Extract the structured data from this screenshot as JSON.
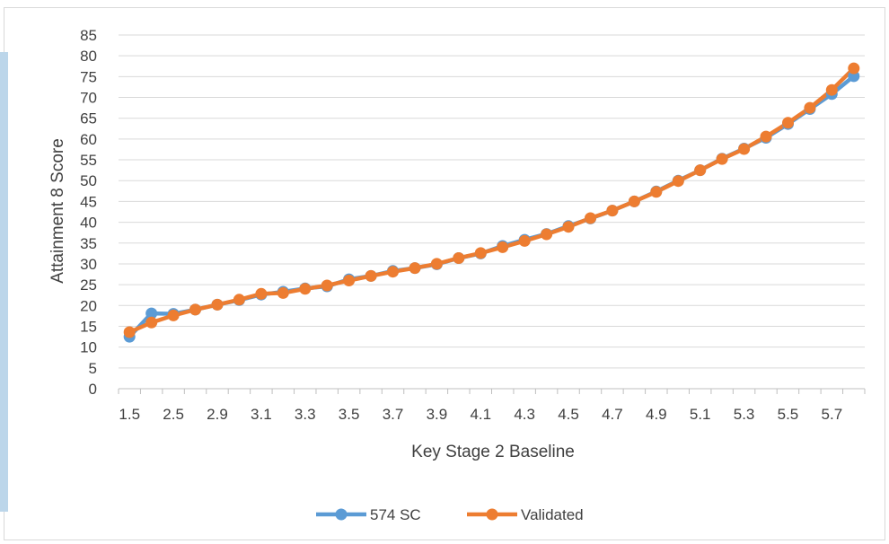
{
  "chart_data": {
    "type": "line",
    "title": "",
    "xlabel": "Key Stage 2 Baseline",
    "ylabel": "Attainment 8 Score",
    "ylim": [
      0,
      85
    ],
    "ytick_step": 5,
    "yticks": [
      "0",
      "5",
      "10",
      "15",
      "20",
      "25",
      "30",
      "35",
      "40",
      "45",
      "50",
      "55",
      "60",
      "65",
      "70",
      "75",
      "80",
      "85"
    ],
    "grid": "horizontal",
    "legend": "bottom-center",
    "x_tick_labels": [
      "1.5",
      "2.5",
      "2.9",
      "3.1",
      "3.3",
      "3.5",
      "3.7",
      "3.9",
      "4.1",
      "4.3",
      "4.5",
      "4.7",
      "4.9",
      "5.1",
      "5.3",
      "5.5",
      "5.7"
    ],
    "categories": [
      "1.5",
      "2",
      "2.5",
      "2.7",
      "2.9",
      "3",
      "3.1",
      "3.2",
      "3.3",
      "3.4",
      "3.5",
      "3.6",
      "3.7",
      "3.8",
      "3.9",
      "4",
      "4.1",
      "4.2",
      "4.3",
      "4.4",
      "4.5",
      "4.6",
      "4.7",
      "4.8",
      "4.9",
      "5",
      "5.1",
      "5.2",
      "5.3",
      "5.4",
      "5.5",
      "5.6",
      "5.7",
      "5.8"
    ],
    "series": [
      {
        "name": "574 SC",
        "color": "#5b9bd5",
        "values": [
          12.5,
          18.1,
          18.0,
          19.0,
          20.2,
          21.3,
          22.6,
          23.3,
          24.1,
          24.6,
          26.3,
          27.1,
          28.3,
          29.0,
          29.9,
          31.4,
          32.5,
          34.3,
          35.8,
          37.2,
          39.1,
          40.9,
          42.8,
          45.0,
          47.4,
          50.0,
          52.5,
          55.3,
          57.7,
          60.3,
          63.6,
          67.2,
          70.8,
          75.1
        ]
      },
      {
        "name": "Validated",
        "color": "#ed7d31",
        "values": [
          13.6,
          15.9,
          17.6,
          19.0,
          20.2,
          21.4,
          22.8,
          23.0,
          24.0,
          24.8,
          26.0,
          27.1,
          28.1,
          29.0,
          30.0,
          31.4,
          32.6,
          34.0,
          35.5,
          37.1,
          38.9,
          41.0,
          42.8,
          45.0,
          47.3,
          49.9,
          52.5,
          55.2,
          57.6,
          60.6,
          63.9,
          67.5,
          71.8,
          77.0
        ]
      }
    ]
  }
}
